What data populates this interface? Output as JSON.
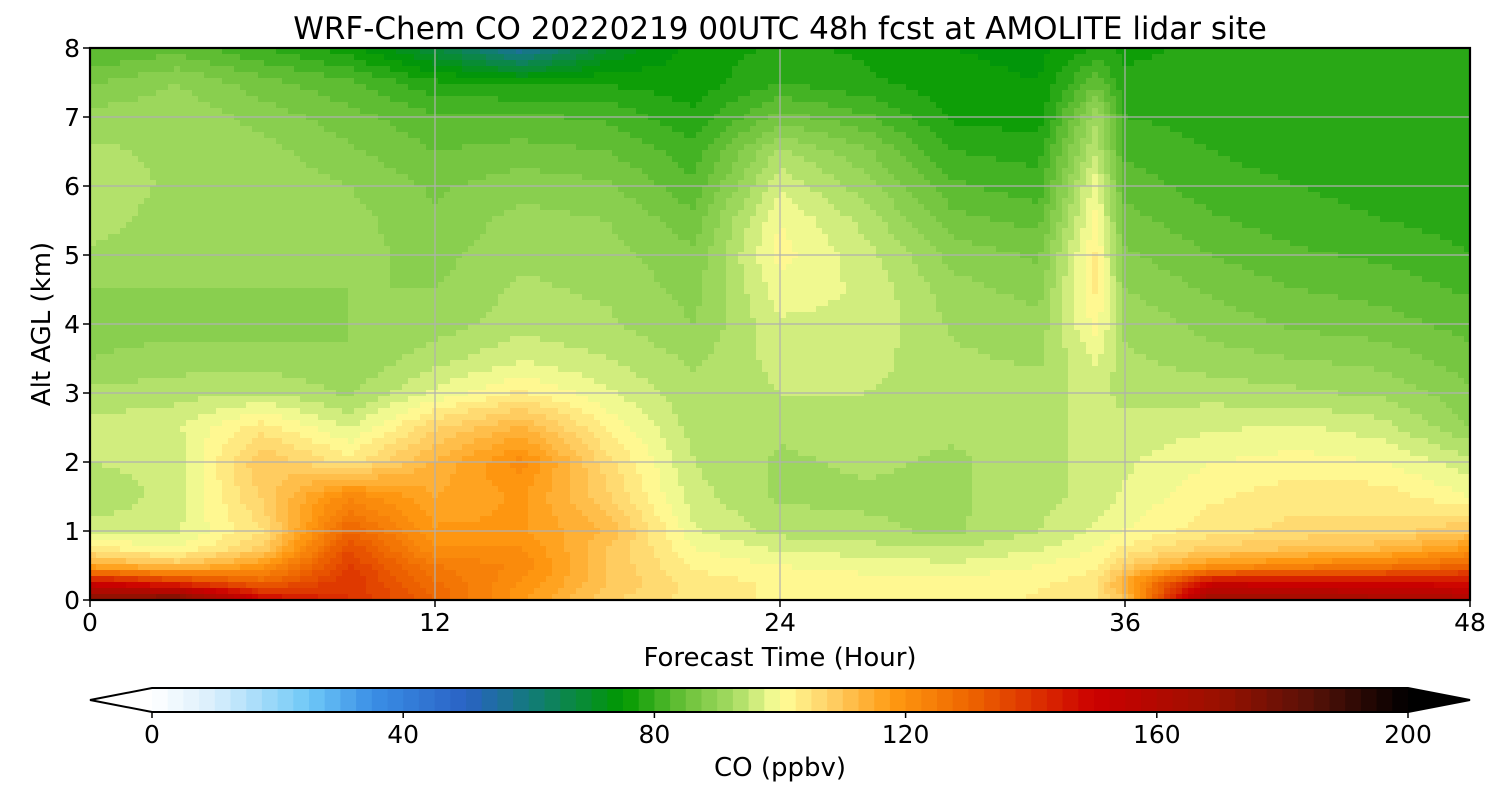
{
  "chart_data": {
    "type": "heatmap",
    "title": "WRF-Chem CO  20220219 00UTC 48h fcst at AMOLITE lidar site",
    "xlabel": "Forecast Time (Hour)",
    "ylabel": "Alt AGL (km)",
    "xlim": [
      0,
      48
    ],
    "ylim": [
      0,
      8
    ],
    "xticks": [
      "0",
      "12",
      "24",
      "36",
      "48"
    ],
    "yticks": [
      "0",
      "1",
      "2",
      "3",
      "4",
      "5",
      "6",
      "7",
      "8"
    ],
    "grid": true,
    "x": [
      0,
      3,
      6,
      9,
      12,
      15,
      18,
      21,
      24,
      27,
      30,
      33,
      35,
      36,
      39,
      42,
      45,
      48
    ],
    "y": [
      0,
      0.25,
      0.5,
      0.75,
      1,
      1.5,
      2,
      2.5,
      3,
      3.5,
      4,
      4.5,
      5,
      5.5,
      6,
      6.5,
      7,
      7.5,
      8
    ],
    "z": [
      [
        175,
        180,
        150,
        140,
        130,
        118,
        108,
        104,
        102,
        101,
        101,
        103,
        105,
        110,
        170,
        168,
        165,
        162
      ],
      [
        150,
        140,
        130,
        140,
        128,
        120,
        110,
        104,
        102,
        101,
        101,
        102,
        104,
        115,
        150,
        150,
        148,
        148
      ],
      [
        115,
        110,
        118,
        138,
        125,
        122,
        110,
        102,
        100,
        99,
        98,
        100,
        102,
        108,
        118,
        122,
        125,
        130
      ],
      [
        103,
        100,
        108,
        135,
        120,
        120,
        110,
        100,
        97,
        96,
        95,
        97,
        100,
        103,
        108,
        110,
        112,
        118
      ],
      [
        96,
        97,
        105,
        130,
        118,
        118,
        112,
        98,
        94,
        93,
        92,
        95,
        98,
        100,
        104,
        106,
        106,
        110
      ],
      [
        93,
        96,
        108,
        122,
        115,
        118,
        108,
        96,
        92,
        92,
        92,
        94,
        96,
        98,
        102,
        104,
        104,
        100
      ],
      [
        95,
        96,
        110,
        104,
        113,
        121,
        106,
        95,
        92,
        93,
        92,
        94,
        96,
        97,
        100,
        101,
        100,
        96
      ],
      [
        96,
        97,
        104,
        97,
        107,
        113,
        102,
        94,
        93,
        94,
        93,
        94,
        96,
        96,
        97,
        98,
        96,
        90
      ],
      [
        93,
        94,
        95,
        92,
        98,
        103,
        98,
        93,
        95,
        95,
        94,
        94,
        96,
        94,
        94,
        93,
        92,
        88
      ],
      [
        90,
        91,
        91,
        90,
        94,
        97,
        95,
        92,
        96,
        96,
        93,
        92,
        98,
        93,
        91,
        90,
        89,
        86
      ],
      [
        89,
        89,
        89,
        90,
        91,
        94,
        93,
        90,
        97,
        97,
        92,
        91,
        101,
        92,
        89,
        87,
        86,
        84
      ],
      [
        90,
        90,
        90,
        90,
        90,
        93,
        92,
        89,
        99,
        97,
        91,
        89,
        103,
        90,
        87,
        85,
        84,
        82
      ],
      [
        92,
        90,
        91,
        91,
        89,
        92,
        91,
        88,
        101,
        96,
        89,
        87,
        103,
        88,
        85,
        83,
        82,
        80
      ],
      [
        94,
        91,
        92,
        91,
        88,
        91,
        90,
        86,
        100,
        94,
        86,
        84,
        101,
        86,
        83,
        81,
        80,
        79
      ],
      [
        94,
        92,
        92,
        90,
        87,
        89,
        88,
        83,
        97,
        91,
        83,
        81,
        99,
        84,
        81,
        80,
        79,
        78
      ],
      [
        93,
        92,
        91,
        88,
        85,
        86,
        85,
        81,
        93,
        88,
        80,
        79,
        95,
        82,
        80,
        79,
        78,
        78
      ],
      [
        91,
        92,
        89,
        86,
        83,
        83,
        82,
        78,
        86,
        83,
        77,
        76,
        92,
        80,
        79,
        78,
        78,
        78
      ],
      [
        87,
        90,
        86,
        83,
        78,
        77,
        77,
        76,
        80,
        78,
        76,
        75,
        84,
        78,
        78,
        78,
        78,
        79
      ],
      [
        82,
        84,
        80,
        76,
        68,
        55,
        70,
        76,
        78,
        77,
        75,
        74,
        78,
        77,
        78,
        78,
        78,
        79
      ]
    ],
    "colorbar": {
      "label": "CO  (ppbv)",
      "min": 0,
      "max": 200,
      "ticks": [
        "0",
        "40",
        "80",
        "120",
        "160",
        "200"
      ],
      "extend": "both",
      "levels": 80,
      "stops": [
        {
          "v": 0,
          "c": "#ffffff"
        },
        {
          "v": 10,
          "c": "#d8eefc"
        },
        {
          "v": 25,
          "c": "#6ec8f7"
        },
        {
          "v": 35,
          "c": "#3a8fe6"
        },
        {
          "v": 50,
          "c": "#2a62c4"
        },
        {
          "v": 60,
          "c": "#137a7c"
        },
        {
          "v": 75,
          "c": "#009900"
        },
        {
          "v": 85,
          "c": "#6cc23a"
        },
        {
          "v": 93,
          "c": "#aadd66"
        },
        {
          "v": 100,
          "c": "#ffff99"
        },
        {
          "v": 108,
          "c": "#ffd066"
        },
        {
          "v": 118,
          "c": "#ff9911"
        },
        {
          "v": 130,
          "c": "#ee6600"
        },
        {
          "v": 140,
          "c": "#dd3300"
        },
        {
          "v": 150,
          "c": "#cc0000"
        },
        {
          "v": 170,
          "c": "#991100"
        },
        {
          "v": 185,
          "c": "#551108"
        },
        {
          "v": 200,
          "c": "#000000"
        }
      ]
    }
  }
}
